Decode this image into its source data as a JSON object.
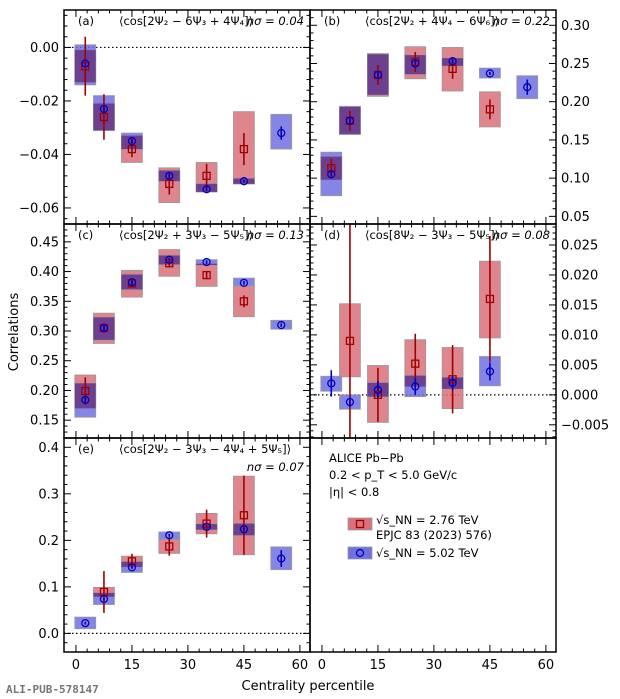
{
  "chart_data": {
    "type": "scatter",
    "xlabel": "Centrality percentile",
    "ylabel": "Correlations",
    "x_ticks": [
      0,
      15,
      30,
      45,
      60
    ],
    "x_range": [
      -3.2,
      62.7
    ],
    "legend": {
      "placement": "bottom-right-panel",
      "header_lines": [
        "ALICE Pb−Pb",
        "0.2 < p_T < 5.0 GeV/c",
        "|η| < 0.8"
      ],
      "entries": [
        {
          "label_line1": "√s_NN = 2.76 TeV",
          "label_line2": "EPJC 83 (2023) 576)",
          "marker": "square",
          "color": "#a00000",
          "box_color": "#d9707a"
        },
        {
          "label_line1": "√s_NN = 5.02 TeV",
          "marker": "circle",
          "color": "#0000c0",
          "box_color": "#7070e0"
        }
      ]
    },
    "panels": [
      {
        "id": "a",
        "label": "(a)",
        "observable": "⟨cos[2Ψ₂ − 6Ψ₃ + 4Ψ₄]⟩",
        "nsigma": "nσ = 0.04",
        "y_axis_side": "left",
        "ylim": [
          -0.066,
          0.014
        ],
        "y_ticks": [
          0.0,
          -0.02,
          -0.04,
          -0.06
        ],
        "y_tick_labels": [
          "0.00",
          "−0.02",
          "−0.04",
          "−0.06"
        ],
        "series": [
          {
            "name": "5.02 TeV",
            "x": [
              2.5,
              7.5,
              15,
              25,
              35,
              45,
              55
            ],
            "y": [
              -0.006,
              -0.023,
              -0.035,
              -0.048,
              -0.053,
              -0.05,
              -0.032
            ],
            "stat": [
              0.0008,
              0.0008,
              0.0008,
              0.0008,
              0.0008,
              0.0005,
              0.0025
            ],
            "sys_low": [
              -0.014,
              -0.031,
              -0.038,
              -0.05,
              -0.054,
              -0.051,
              -0.038
            ],
            "sys_high": [
              0.001,
              -0.018,
              -0.032,
              -0.046,
              -0.051,
              -0.049,
              -0.025
            ]
          },
          {
            "name": "2.76 TeV",
            "x": [
              2.5,
              7.5,
              15,
              25,
              35,
              45
            ],
            "y": [
              -0.007,
              -0.026,
              -0.038,
              -0.051,
              -0.048,
              -0.038
            ],
            "stat": [
              0.011,
              0.0085,
              0.003,
              0.004,
              0.0045,
              0.006
            ],
            "sys_low": [
              -0.013,
              -0.031,
              -0.043,
              -0.058,
              -0.054,
              -0.051
            ],
            "sys_high": [
              -0.001,
              -0.021,
              -0.033,
              -0.045,
              -0.043,
              -0.024
            ]
          }
        ]
      },
      {
        "id": "b",
        "label": "(b)",
        "observable": "⟨cos[2Ψ₂ + 4Ψ₄ − 6Ψ₆]⟩",
        "nsigma": "nσ = 0.22",
        "y_axis_side": "right",
        "ylim": [
          0.04,
          0.32
        ],
        "y_ticks": [
          0.05,
          0.1,
          0.15,
          0.2,
          0.25,
          0.3
        ],
        "y_tick_labels": [
          "0.05",
          "0.10",
          "0.15",
          "0.20",
          "0.25",
          "0.30"
        ],
        "series": [
          {
            "name": "5.02 TeV",
            "x": [
              2.5,
              7.5,
              15,
              25,
              35,
              45,
              55
            ],
            "y": [
              0.105,
              0.175,
              0.235,
              0.25,
              0.253,
              0.237,
              0.219
            ],
            "stat": [
              0.003,
              0.003,
              0.003,
              0.003,
              0.003,
              0.002,
              0.01
            ],
            "sys_low": [
              0.077,
              0.157,
              0.209,
              0.236,
              0.247,
              0.231,
              0.204
            ],
            "sys_high": [
              0.134,
              0.194,
              0.262,
              0.261,
              0.257,
              0.244,
              0.234
            ]
          },
          {
            "name": "2.76 TeV",
            "x": [
              2.5,
              7.5,
              15,
              25,
              35,
              45
            ],
            "y": [
              0.113,
              0.175,
              0.235,
              0.252,
              0.243,
              0.19
            ],
            "stat": [
              0.013,
              0.013,
              0.013,
              0.013,
              0.013,
              0.013
            ],
            "sys_low": [
              0.098,
              0.158,
              0.207,
              0.23,
              0.214,
              0.167
            ],
            "sys_high": [
              0.128,
              0.193,
              0.263,
              0.272,
              0.271,
              0.213
            ]
          }
        ]
      },
      {
        "id": "c",
        "label": "(c)",
        "observable": "⟨cos[2Ψ₂ + 3Ψ₃ − 5Ψ₅]⟩",
        "nsigma": "nσ = 0.13",
        "y_axis_side": "left",
        "ylim": [
          0.12,
          0.48
        ],
        "y_ticks": [
          0.15,
          0.2,
          0.25,
          0.3,
          0.35,
          0.4,
          0.45
        ],
        "y_tick_labels": [
          "0.15",
          "0.20",
          "0.25",
          "0.30",
          "0.35",
          "0.40",
          "0.45"
        ],
        "series": [
          {
            "name": "5.02 TeV",
            "x": [
              2.5,
              7.5,
              15,
              25,
              35,
              45,
              55
            ],
            "y": [
              0.184,
              0.305,
              0.382,
              0.42,
              0.416,
              0.381,
              0.31
            ],
            "stat": [
              0.004,
              0.004,
              0.004,
              0.003,
              0.003,
              0.003,
              0.003
            ],
            "sys_low": [
              0.155,
              0.285,
              0.37,
              0.412,
              0.411,
              0.376,
              0.303
            ],
            "sys_high": [
              0.212,
              0.323,
              0.395,
              0.427,
              0.42,
              0.389,
              0.318
            ]
          },
          {
            "name": "2.76 TeV",
            "x": [
              2.5,
              7.5,
              15,
              25,
              35,
              45
            ],
            "y": [
              0.199,
              0.305,
              0.38,
              0.414,
              0.394,
              0.35
            ],
            "stat": [
              0.023,
              0.008,
              0.005,
              0.005,
              0.006,
              0.01
            ],
            "sys_low": [
              0.17,
              0.279,
              0.357,
              0.392,
              0.375,
              0.324
            ],
            "sys_high": [
              0.226,
              0.33,
              0.402,
              0.437,
              0.413,
              0.376
            ]
          }
        ]
      },
      {
        "id": "d",
        "label": "(d)",
        "observable": "⟨cos[8Ψ₂ − 3Ψ₃ − 5Ψ₅]⟩",
        "nsigma": "nσ = 0.08",
        "y_axis_side": "right",
        "ylim": [
          -0.0072,
          0.0285
        ],
        "y_ticks": [
          -0.005,
          0.0,
          0.005,
          0.01,
          0.015,
          0.02,
          0.025
        ],
        "y_tick_labels": [
          "−0.005",
          "0.000",
          "0.005",
          "0.010",
          "0.015",
          "0.020",
          "0.025"
        ],
        "series": [
          {
            "name": "5.02 TeV",
            "x": [
              2.5,
              7.5,
              15,
              25,
              35,
              45
            ],
            "y": [
              0.0019,
              -0.0012,
              0.0008,
              0.0014,
              0.002,
              0.0039
            ],
            "stat": [
              0.0022,
              0.0008,
              0.0015,
              0.0014,
              0.0012,
              0.0015
            ],
            "sys_low": [
              0.0006,
              -0.0024,
              -0.0003,
              -0.0003,
              0.001,
              0.0015
            ],
            "sys_high": [
              0.0031,
              0.0,
              0.002,
              0.0032,
              0.0029,
              0.0064
            ]
          },
          {
            "name": "2.76 TeV",
            "x": [
              7.5,
              15,
              25,
              35,
              45
            ],
            "y": [
              0.009,
              0.0,
              0.0052,
              0.0026,
              0.016
            ],
            "stat": [
              0.02,
              0.0045,
              0.005,
              0.0057,
              0.0105
            ],
            "sys_low": [
              0.003,
              -0.0046,
              0.0014,
              -0.0023,
              0.0095
            ],
            "sys_high": [
              0.0152,
              0.0049,
              0.0092,
              0.0079,
              0.0223
            ]
          }
        ]
      },
      {
        "id": "e",
        "label": "(e)",
        "observable": "⟨cos[2Ψ₂ − 3Ψ₃ − 4Ψ₄ + 5Ψ₅]⟩",
        "nsigma": "nσ = 0.07",
        "y_axis_side": "left",
        "ylim": [
          -0.04,
          0.42
        ],
        "y_ticks": [
          0.0,
          0.1,
          0.2,
          0.3,
          0.4
        ],
        "y_tick_labels": [
          "0.0",
          "0.1",
          "0.2",
          "0.3",
          "0.4"
        ],
        "series": [
          {
            "name": "5.02 TeV",
            "x": [
              2.5,
              7.5,
              15,
              25,
              35,
              45,
              55
            ],
            "y": [
              0.022,
              0.074,
              0.142,
              0.211,
              0.229,
              0.224,
              0.161
            ],
            "stat": [
              0.003,
              0.003,
              0.003,
              0.003,
              0.003,
              0.003,
              0.018
            ],
            "sys_low": [
              0.01,
              0.062,
              0.131,
              0.202,
              0.223,
              0.211,
              0.137
            ],
            "sys_high": [
              0.035,
              0.087,
              0.154,
              0.218,
              0.235,
              0.236,
              0.186
            ]
          },
          {
            "name": "2.76 TeV",
            "x": [
              7.5,
              15,
              25,
              35,
              45
            ],
            "y": [
              0.089,
              0.155,
              0.187,
              0.236,
              0.254
            ],
            "stat": [
              0.045,
              0.016,
              0.02,
              0.03,
              0.085
            ],
            "sys_low": [
              0.079,
              0.143,
              0.172,
              0.214,
              0.169
            ],
            "sys_high": [
              0.099,
              0.166,
              0.202,
              0.258,
              0.338
            ]
          }
        ]
      }
    ]
  },
  "colors": {
    "red_marker": "#a00000",
    "red_box": "#d9707a",
    "blue_marker": "#0000c0",
    "blue_box": "#7070e0",
    "overlap": "#6a3a8a"
  },
  "footer": {
    "publication_id": "ALI-PUB-578147"
  }
}
